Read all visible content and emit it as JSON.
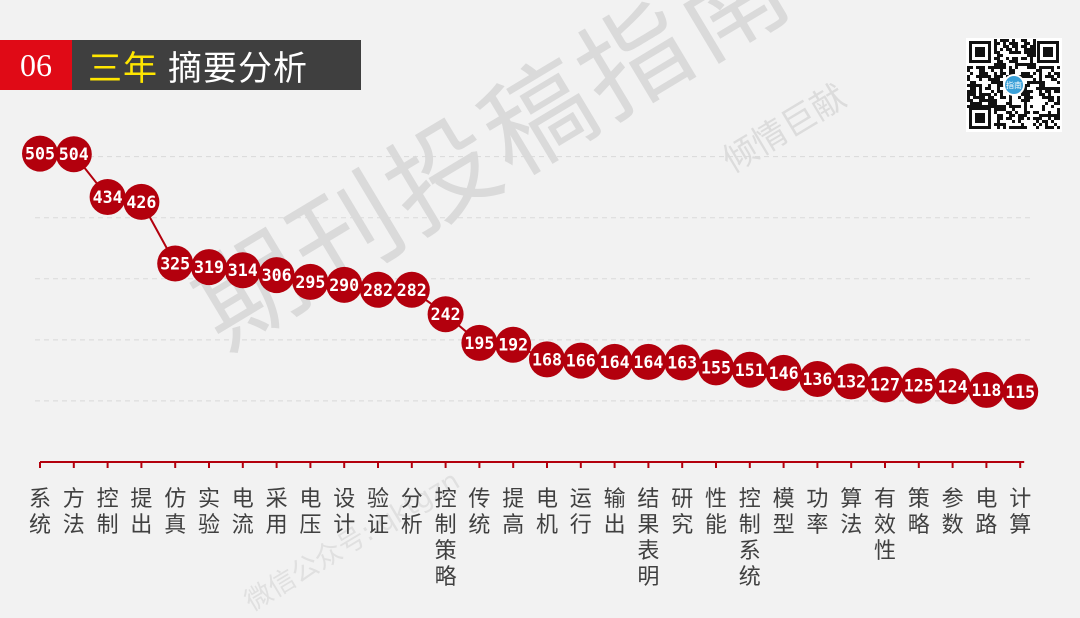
{
  "header": {
    "number": "06",
    "title_highlight": "三年",
    "title_rest": "摘要分析"
  },
  "watermark": {
    "main": "期刊投稿指南",
    "secondary": "倾情巨献",
    "sub": "微信公众号: qktgzn"
  },
  "qr": {
    "icon": "qr-code-icon",
    "center_text": "指南"
  },
  "colors": {
    "accent": "#e00a16",
    "marker": "#b3000d",
    "header_bg": "#3f3f3f",
    "highlight": "#ffe600"
  },
  "chart_data": {
    "type": "line",
    "title": "",
    "xlabel": "",
    "ylabel": "",
    "ylim": [
      0,
      560
    ],
    "grid": true,
    "categories": [
      "系统",
      "方法",
      "控制",
      "提出",
      "仿真",
      "实验",
      "电流",
      "采用",
      "电压",
      "设计",
      "验证",
      "分析",
      "控制策略",
      "传统",
      "提高",
      "电机",
      "运行",
      "输出",
      "结果表明",
      "研究",
      "性能",
      "控制系统",
      "模型",
      "功率",
      "算法",
      "有效性",
      "策略",
      "参数",
      "电路",
      "计算"
    ],
    "values": [
      505,
      504,
      434,
      426,
      325,
      319,
      314,
      306,
      295,
      290,
      282,
      282,
      242,
      195,
      192,
      168,
      166,
      164,
      164,
      163,
      155,
      151,
      146,
      136,
      132,
      127,
      125,
      124,
      118,
      115
    ]
  }
}
